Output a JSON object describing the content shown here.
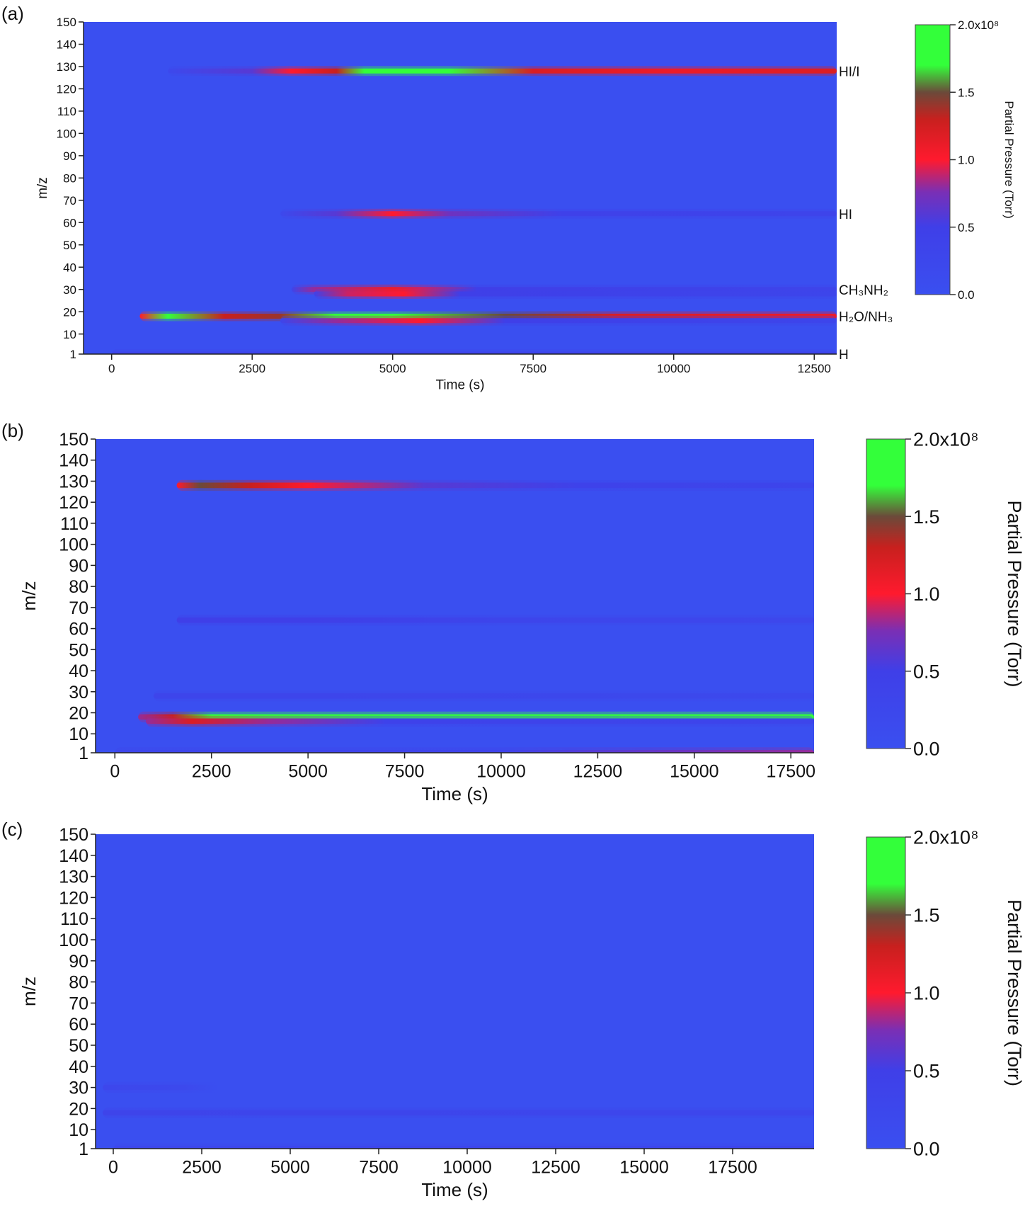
{
  "figure": {
    "panels": [
      "(a)",
      "(b)",
      "(c)"
    ]
  },
  "colors": {
    "background_blue": "#3a4ff0",
    "red": "#ff1a2e",
    "green": "#33ff3a",
    "dark": "#6b4a3a",
    "magenta": "#7a2fb5"
  },
  "chart_data": [
    {
      "type": "heatmap",
      "panel": "(a)",
      "xlabel": "Time (s)",
      "ylabel": "m/z",
      "xlim": [
        -500,
        12900
      ],
      "ylim": [
        1,
        150
      ],
      "x_ticks": [
        0,
        2500,
        5000,
        7500,
        10000,
        12500
      ],
      "y_ticks": [
        1,
        10,
        20,
        30,
        40,
        50,
        60,
        70,
        80,
        90,
        100,
        110,
        120,
        130,
        140,
        150
      ],
      "colorbar": {
        "label": "Partial Pressure (Torr)",
        "ticks": [
          "0.0",
          "0.5",
          "1.0",
          "1.5",
          "2.0x10⁸"
        ],
        "range": [
          0,
          2.0
        ]
      },
      "band_labels": [
        {
          "text": "HI/I",
          "mz": 128
        },
        {
          "text": "HI",
          "mz": 64
        },
        {
          "text": "CH₃NH₂",
          "mz": 30
        },
        {
          "text": "H₂O/NH₃",
          "mz": 18
        },
        {
          "text": "H",
          "mz": 1
        }
      ],
      "bands": [
        {
          "mz": 128,
          "stops": [
            [
              1000,
              0.2
            ],
            [
              2500,
              0.6
            ],
            [
              3200,
              1.0
            ],
            [
              4000,
              1.3
            ],
            [
              4500,
              1.9
            ],
            [
              6000,
              1.7
            ],
            [
              7500,
              1.2
            ],
            [
              10000,
              1.1
            ],
            [
              12900,
              1.2
            ]
          ]
        },
        {
          "mz": 64,
          "stops": [
            [
              3000,
              0.2
            ],
            [
              4000,
              0.6
            ],
            [
              5000,
              1.0
            ],
            [
              6000,
              0.7
            ],
            [
              8000,
              0.45
            ],
            [
              12900,
              0.35
            ]
          ]
        },
        {
          "mz": 30,
          "stops": [
            [
              3200,
              0.3
            ],
            [
              3600,
              0.8
            ],
            [
              5000,
              1.1
            ],
            [
              5500,
              0.9
            ],
            [
              6500,
              0.5
            ],
            [
              12900,
              0.35
            ]
          ]
        },
        {
          "mz": 28,
          "stops": [
            [
              3600,
              0.4
            ],
            [
              4200,
              0.9
            ],
            [
              5200,
              1.0
            ],
            [
              6200,
              0.5
            ],
            [
              12900,
              0.3
            ]
          ]
        },
        {
          "mz": 18,
          "stops": [
            [
              500,
              1.0
            ],
            [
              1000,
              1.9
            ],
            [
              2000,
              1.3
            ],
            [
              3000,
              1.4
            ],
            [
              4000,
              1.8
            ],
            [
              5000,
              1.9
            ],
            [
              7000,
              1.5
            ],
            [
              9000,
              1.2
            ],
            [
              12900,
              1.1
            ]
          ]
        },
        {
          "mz": 16,
          "stops": [
            [
              3000,
              0.3
            ],
            [
              4000,
              0.8
            ],
            [
              5500,
              1.0
            ],
            [
              7000,
              0.5
            ],
            [
              12900,
              0.3
            ]
          ]
        },
        {
          "mz": 1,
          "stops": [
            [
              0,
              0.3
            ],
            [
              12900,
              0.3
            ]
          ]
        }
      ]
    },
    {
      "type": "heatmap",
      "panel": "(b)",
      "xlabel": "Time (s)",
      "ylabel": "m/z",
      "xlim": [
        -500,
        18100
      ],
      "ylim": [
        1,
        150
      ],
      "x_ticks": [
        0,
        2500,
        5000,
        7500,
        10000,
        12500,
        15000,
        17500
      ],
      "y_ticks": [
        1,
        10,
        20,
        30,
        40,
        50,
        60,
        70,
        80,
        90,
        100,
        110,
        120,
        130,
        140,
        150
      ],
      "colorbar": {
        "label": "Partial Pressure (Torr)",
        "ticks": [
          "0.0",
          "0.5",
          "1.0",
          "1.5",
          "2.0x10⁸"
        ],
        "range": [
          0,
          2.0
        ]
      },
      "bands": [
        {
          "mz": 128,
          "stops": [
            [
              1600,
              1.0
            ],
            [
              2200,
              1.5
            ],
            [
              3500,
              1.3
            ],
            [
              5000,
              1.0
            ],
            [
              8000,
              0.6
            ],
            [
              12000,
              0.4
            ],
            [
              18100,
              0.3
            ]
          ]
        },
        {
          "mz": 64,
          "stops": [
            [
              1600,
              0.5
            ],
            [
              5000,
              0.5
            ],
            [
              10000,
              0.3
            ],
            [
              18100,
              0.25
            ]
          ]
        },
        {
          "mz": 28,
          "stops": [
            [
              1000,
              0.3
            ],
            [
              5000,
              0.3
            ],
            [
              18100,
              0.2
            ]
          ]
        },
        {
          "mz": 18,
          "stops": [
            [
              600,
              0.8
            ],
            [
              1500,
              1.3
            ],
            [
              2500,
              1.8
            ],
            [
              5000,
              1.9
            ],
            [
              10000,
              1.85
            ],
            [
              15000,
              1.8
            ],
            [
              18100,
              1.8
            ]
          ]
        },
        {
          "mz": 16,
          "stops": [
            [
              800,
              0.8
            ],
            [
              2000,
              1.2
            ],
            [
              4000,
              0.8
            ],
            [
              7000,
              0.4
            ],
            [
              18100,
              0.3
            ]
          ]
        },
        {
          "mz": 1,
          "stops": [
            [
              0,
              0.3
            ],
            [
              10000,
              0.4
            ],
            [
              15000,
              0.7
            ],
            [
              18100,
              0.8
            ]
          ]
        }
      ]
    },
    {
      "type": "heatmap",
      "panel": "(c)",
      "xlabel": "Time (s)",
      "ylabel": "m/z",
      "xlim": [
        -500,
        19800
      ],
      "ylim": [
        1,
        150
      ],
      "x_ticks": [
        0,
        2500,
        5000,
        7500,
        10000,
        12500,
        15000,
        17500
      ],
      "y_ticks": [
        1,
        10,
        20,
        30,
        40,
        50,
        60,
        70,
        80,
        90,
        100,
        110,
        120,
        130,
        140,
        150
      ],
      "colorbar": {
        "label": "Partial Pressure (Torr)",
        "ticks": [
          "0.0",
          "0.5",
          "1.0",
          "1.5",
          "2.0x10⁸"
        ],
        "range": [
          0,
          2.0
        ]
      },
      "bands": [
        {
          "mz": 30,
          "stops": [
            [
              -300,
              0.25
            ],
            [
              2000,
              0.2
            ],
            [
              3000,
              0.0
            ]
          ]
        },
        {
          "mz": 18,
          "stops": [
            [
              -300,
              0.35
            ],
            [
              5000,
              0.3
            ],
            [
              19800,
              0.28
            ]
          ]
        },
        {
          "mz": 1,
          "stops": [
            [
              0,
              0.25
            ],
            [
              19800,
              0.3
            ]
          ]
        }
      ]
    }
  ]
}
